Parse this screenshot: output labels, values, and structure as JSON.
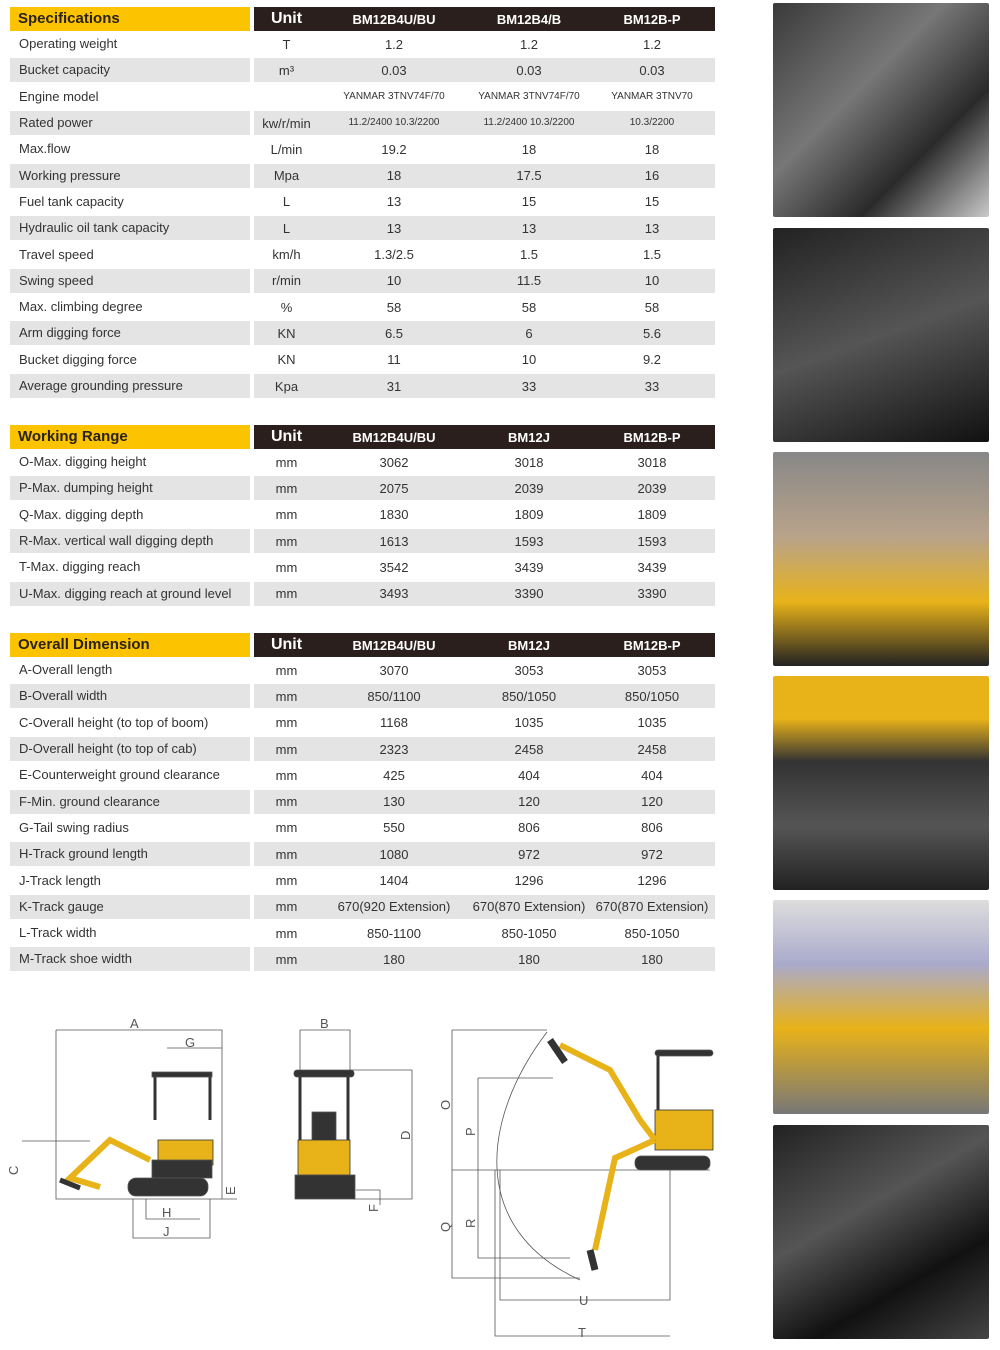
{
  "specifications": {
    "title": "Specifications",
    "unit_header": "Unit",
    "models": [
      "BM12B4U/BU",
      "BM12B4/B",
      "BM12B-P"
    ],
    "rows": [
      {
        "label": "Operating weight",
        "unit": "T",
        "values": [
          "1.2",
          "1.2",
          "1.2"
        ]
      },
      {
        "label": "Bucket capacity",
        "unit": "m³",
        "values": [
          "0.03",
          "0.03",
          "0.03"
        ]
      },
      {
        "label": "Engine model",
        "unit": "",
        "values": [
          "YANMAR 3TNV74F/70",
          "YANMAR 3TNV74F/70",
          "YANMAR 3TNV70"
        ],
        "small": true
      },
      {
        "label": "Rated power",
        "unit": "kw/r/min",
        "values": [
          "11.2/2400 10.3/2200",
          "11.2/2400 10.3/2200",
          "10.3/2200"
        ],
        "small": true
      },
      {
        "label": "Max.flow",
        "unit": "L/min",
        "values": [
          "19.2",
          "18",
          "18"
        ]
      },
      {
        "label": "Working pressure",
        "unit": "Mpa",
        "values": [
          "18",
          "17.5",
          "16"
        ]
      },
      {
        "label": "Fuel tank capacity",
        "unit": "L",
        "values": [
          "13",
          "15",
          "15"
        ]
      },
      {
        "label": "Hydraulic oil tank capacity",
        "unit": "L",
        "values": [
          "13",
          "13",
          "13"
        ]
      },
      {
        "label": "Travel speed",
        "unit": "km/h",
        "values": [
          "1.3/2.5",
          "1.5",
          "1.5"
        ]
      },
      {
        "label": "Swing speed",
        "unit": "r/min",
        "values": [
          "10",
          "11.5",
          "10"
        ]
      },
      {
        "label": "Max. climbing degree",
        "unit": "%",
        "values": [
          "58",
          "58",
          "58"
        ]
      },
      {
        "label": "Arm digging force",
        "unit": "KN",
        "values": [
          "6.5",
          "6",
          "5.6"
        ]
      },
      {
        "label": "Bucket digging force",
        "unit": "KN",
        "values": [
          "11",
          "10",
          "9.2"
        ]
      },
      {
        "label": "Average grounding pressure",
        "unit": "Kpa",
        "values": [
          "31",
          "33",
          "33"
        ]
      }
    ]
  },
  "working_range": {
    "title": "Working Range",
    "unit_header": "Unit",
    "models": [
      "BM12B4U/BU",
      "BM12J",
      "BM12B-P"
    ],
    "rows": [
      {
        "label": "O-Max. digging height",
        "unit": "mm",
        "values": [
          "3062",
          "3018",
          "3018"
        ]
      },
      {
        "label": "P-Max. dumping height",
        "unit": "mm",
        "values": [
          "2075",
          "2039",
          "2039"
        ]
      },
      {
        "label": "Q-Max. digging depth",
        "unit": "mm",
        "values": [
          "1830",
          "1809",
          "1809"
        ]
      },
      {
        "label": "R-Max. vertical wall digging depth",
        "unit": "mm",
        "values": [
          "1613",
          "1593",
          "1593"
        ]
      },
      {
        "label": "T-Max. digging reach",
        "unit": "mm",
        "values": [
          "3542",
          "3439",
          "3439"
        ]
      },
      {
        "label": "U-Max. digging reach at ground level",
        "unit": "mm",
        "values": [
          "3493",
          "3390",
          "3390"
        ]
      }
    ]
  },
  "overall_dimension": {
    "title": "Overall Dimension",
    "unit_header": "Unit",
    "models": [
      "BM12B4U/BU",
      "BM12J",
      "BM12B-P"
    ],
    "rows": [
      {
        "label": "A-Overall length",
        "unit": "mm",
        "values": [
          "3070",
          "3053",
          "3053"
        ]
      },
      {
        "label": "B-Overall width",
        "unit": "mm",
        "values": [
          "850/1100",
          "850/1050",
          "850/1050"
        ]
      },
      {
        "label": "C-Overall height (to top of boom)",
        "unit": "mm",
        "values": [
          "1168",
          "1035",
          "1035"
        ]
      },
      {
        "label": "D-Overall height (to top of cab)",
        "unit": "mm",
        "values": [
          "2323",
          "2458",
          "2458"
        ]
      },
      {
        "label": "E-Counterweight ground clearance",
        "unit": "mm",
        "values": [
          "425",
          "404",
          "404"
        ]
      },
      {
        "label": "F-Min. ground clearance",
        "unit": "mm",
        "values": [
          "130",
          "120",
          "120"
        ]
      },
      {
        "label": "G-Tail swing radius",
        "unit": "mm",
        "values": [
          "550",
          "806",
          "806"
        ]
      },
      {
        "label": "H-Track ground length",
        "unit": "mm",
        "values": [
          "1080",
          "972",
          "972"
        ]
      },
      {
        "label": "J-Track length",
        "unit": "mm",
        "values": [
          "1404",
          "1296",
          "1296"
        ]
      },
      {
        "label": "K-Track gauge",
        "unit": "mm",
        "values": [
          "670(920 Extension)",
          "670(870 Extension)",
          "670(870 Extension)"
        ]
      },
      {
        "label": "L-Track width",
        "unit": "mm",
        "values": [
          "850-1100",
          "850-1050",
          "850-1050"
        ]
      },
      {
        "label": "M-Track shoe width",
        "unit": "mm",
        "values": [
          "180",
          "180",
          "180"
        ]
      }
    ]
  },
  "diagram_labels": {
    "A": "A",
    "B": "B",
    "C": "C",
    "D": "D",
    "E": "E",
    "F": "F",
    "G": "G",
    "H": "H",
    "J": "J",
    "O": "O",
    "P": "P",
    "Q": "Q",
    "R": "R",
    "T": "T",
    "U": "U"
  },
  "photos": [
    "engine-photo",
    "boom-cylinder-photo",
    "control-joysticks-photo",
    "swing-bracket-photo",
    "cab-seat-photo",
    "hydraulic-tank-photo"
  ],
  "colors": {
    "accent": "#fcc300",
    "header_dark": "#2b1f1d",
    "row_gray": "#e4e4e4"
  }
}
